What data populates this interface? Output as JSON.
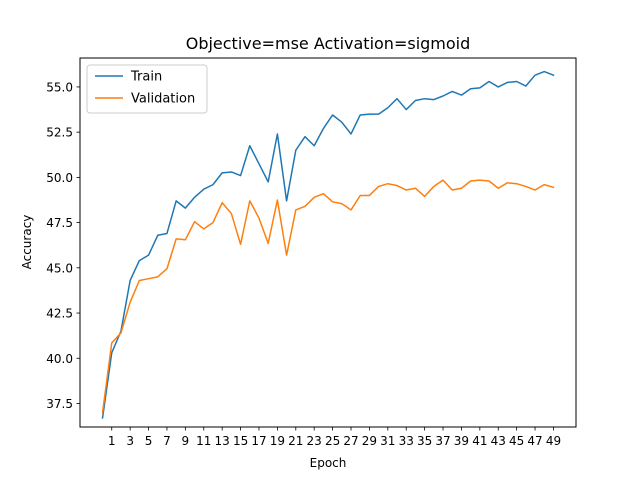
{
  "chart_data": {
    "type": "line",
    "title": "Objective=mse Activation=sigmoid",
    "xlabel": "Epoch",
    "ylabel": "Accuracy",
    "xlim": [
      -2.45,
      51.45
    ],
    "ylim": [
      36.2,
      56.6
    ],
    "x_ticks": [
      1,
      3,
      5,
      7,
      9,
      11,
      13,
      15,
      17,
      19,
      21,
      23,
      25,
      27,
      29,
      31,
      33,
      35,
      37,
      39,
      41,
      43,
      45,
      47,
      49
    ],
    "y_ticks": [
      37.5,
      40.0,
      42.5,
      45.0,
      47.5,
      50.0,
      52.5,
      55.0
    ],
    "y_tick_labels": [
      "37.5",
      "40.0",
      "42.5",
      "45.0",
      "47.5",
      "50.0",
      "52.5",
      "55.0"
    ],
    "legend_position": "upper-left",
    "x": [
      0,
      1,
      2,
      3,
      4,
      5,
      6,
      7,
      8,
      9,
      10,
      11,
      12,
      13,
      14,
      15,
      16,
      17,
      18,
      19,
      20,
      21,
      22,
      23,
      24,
      25,
      26,
      27,
      28,
      29,
      30,
      31,
      32,
      33,
      34,
      35,
      36,
      37,
      38,
      39,
      40,
      41,
      42,
      43,
      44,
      45,
      46,
      47,
      48,
      49
    ],
    "series": [
      {
        "name": "Train",
        "color": "#1f77b4",
        "values": [
          36.7,
          40.3,
          41.5,
          44.3,
          45.4,
          45.7,
          46.8,
          46.9,
          48.7,
          48.3,
          48.9,
          49.35,
          49.6,
          50.25,
          50.3,
          50.1,
          51.75,
          50.75,
          49.75,
          52.4,
          48.7,
          51.5,
          52.25,
          51.75,
          52.7,
          53.45,
          53.05,
          52.4,
          53.45,
          53.5,
          53.5,
          53.85,
          54.35,
          53.75,
          54.25,
          54.35,
          54.3,
          54.5,
          54.75,
          54.55,
          54.9,
          54.95,
          55.3,
          55.0,
          55.25,
          55.3,
          55.05,
          55.65,
          55.85,
          55.65
        ]
      },
      {
        "name": "Validation",
        "color": "#ff7f0e",
        "values": [
          37.0,
          40.85,
          41.4,
          43.1,
          44.3,
          44.4,
          44.5,
          44.95,
          46.6,
          46.55,
          47.55,
          47.15,
          47.5,
          48.6,
          48.0,
          46.3,
          48.7,
          47.75,
          46.35,
          48.75,
          45.7,
          48.2,
          48.4,
          48.9,
          49.1,
          48.65,
          48.55,
          48.2,
          49.0,
          49.0,
          49.5,
          49.65,
          49.55,
          49.3,
          49.4,
          48.95,
          49.5,
          49.85,
          49.3,
          49.4,
          49.8,
          49.85,
          49.8,
          49.4,
          49.7,
          49.65,
          49.5,
          49.3,
          49.6,
          49.45
        ]
      }
    ]
  }
}
